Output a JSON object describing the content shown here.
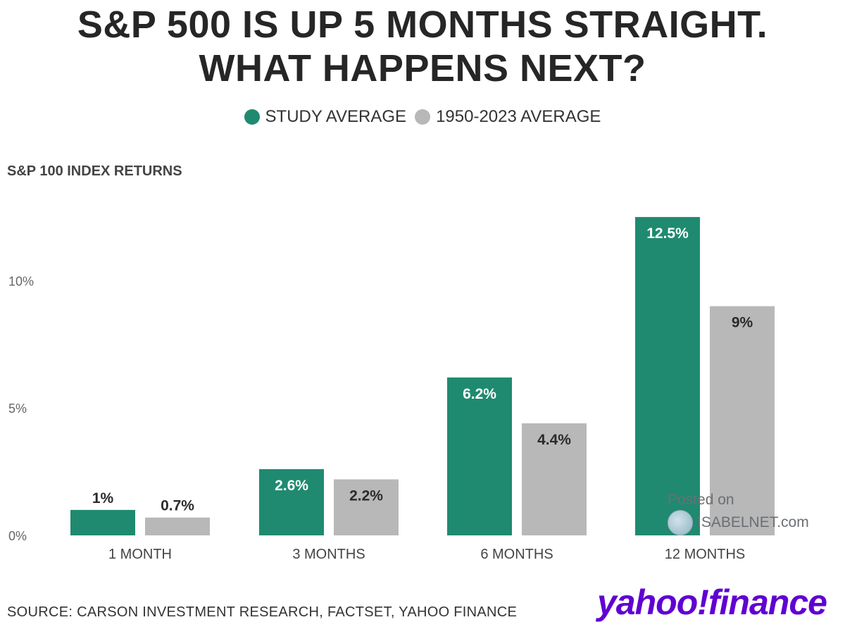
{
  "title": {
    "line1": "S&P 500 IS UP 5 MONTHS STRAIGHT.",
    "line2": "WHAT HAPPENS NEXT?"
  },
  "legend": [
    {
      "label": "STUDY AVERAGE",
      "color": "#1f8a70"
    },
    {
      "label": "1950-2023 AVERAGE",
      "color": "#b8b8b8"
    }
  ],
  "subtitle": "S&P 100 INDEX RETURNS",
  "source": "SOURCE: CARSON INVESTMENT RESEARCH, FACTSET, YAHOO FINANCE",
  "brand": "yahoo!finance",
  "watermark": {
    "line1": "Posted on",
    "line2": "ISABELNET.com"
  },
  "chart_data": {
    "type": "bar",
    "title": "S&P 100 INDEX RETURNS",
    "categories": [
      "1 MONTH",
      "3 MONTHS",
      "6 MONTHS",
      "12 MONTHS"
    ],
    "series": [
      {
        "name": "STUDY AVERAGE",
        "values": [
          1,
          2.6,
          6.2,
          12.5
        ],
        "labels": [
          "1%",
          "2.6%",
          "6.2%",
          "12.5%"
        ],
        "color": "#1f8a70"
      },
      {
        "name": "1950-2023 AVERAGE",
        "values": [
          0.7,
          2.2,
          4.4,
          9
        ],
        "labels": [
          "0.7%",
          "2.2%",
          "4.4%",
          "9%"
        ],
        "color": "#b8b8b8"
      }
    ],
    "yticks": [
      0,
      5,
      10
    ],
    "ytick_labels": [
      "0%",
      "5%",
      "10%"
    ],
    "ylim": [
      0,
      13
    ],
    "grid": false,
    "legend_position": "top-center"
  }
}
